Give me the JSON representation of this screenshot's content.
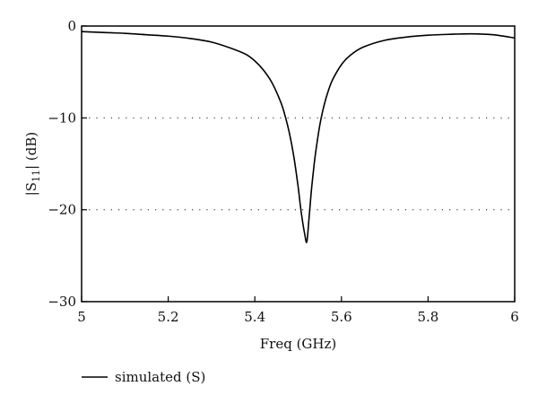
{
  "chart_data": {
    "type": "line",
    "title": "",
    "xlabel": "Freq (GHz)",
    "ylabel": {
      "prefix": "|S",
      "subscript": "11",
      "suffix": "| (dB)"
    },
    "xlim": [
      5,
      6
    ],
    "ylim": [
      -30,
      0
    ],
    "x_ticks": [
      5,
      5.2,
      5.4,
      5.6,
      5.8,
      6
    ],
    "x_tick_labels": [
      "5",
      "5.2",
      "5.4",
      "5.6",
      "5.8",
      "6"
    ],
    "y_ticks": [
      0,
      -10,
      -20,
      -30
    ],
    "y_tick_labels": [
      "0",
      "−10",
      "−20",
      "−30"
    ],
    "reference_lines_y": [
      -10,
      -20
    ],
    "grid": "dotted horizontal at -10 and -20",
    "legend_position": "bottom-left, below plot",
    "series": [
      {
        "name": "simulated (S)",
        "color": "#000000",
        "x": [
          5.0,
          5.05,
          5.1,
          5.15,
          5.2,
          5.25,
          5.3,
          5.35,
          5.38,
          5.4,
          5.42,
          5.44,
          5.46,
          5.47,
          5.48,
          5.49,
          5.5,
          5.505,
          5.51,
          5.515,
          5.52,
          5.525,
          5.53,
          5.535,
          5.54,
          5.55,
          5.56,
          5.57,
          5.58,
          5.6,
          5.62,
          5.65,
          5.7,
          5.75,
          5.8,
          5.85,
          5.9,
          5.95,
          6.0
        ],
        "y": [
          -0.6,
          -0.7,
          -0.8,
          -0.95,
          -1.1,
          -1.35,
          -1.75,
          -2.5,
          -3.1,
          -3.8,
          -4.8,
          -6.2,
          -8.3,
          -9.8,
          -11.7,
          -14.2,
          -17.5,
          -19.5,
          -21.2,
          -22.6,
          -23.5,
          -21.0,
          -18.2,
          -15.9,
          -13.9,
          -10.8,
          -8.6,
          -7.0,
          -5.8,
          -4.2,
          -3.2,
          -2.3,
          -1.55,
          -1.2,
          -1.0,
          -0.9,
          -0.85,
          -0.95,
          -1.3
        ]
      }
    ]
  }
}
